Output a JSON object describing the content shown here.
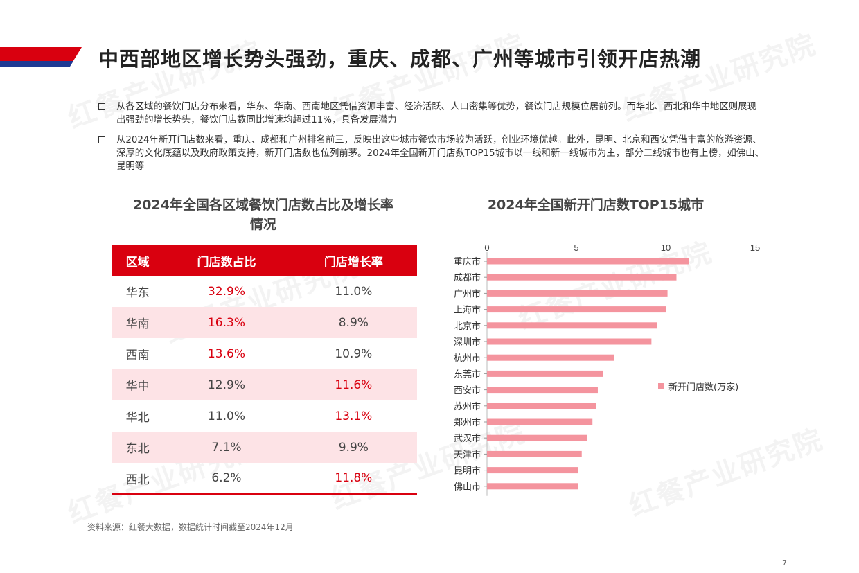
{
  "title": "中西部地区增长势头强劲，重庆、成都、广州等城市引领开店热潮",
  "bullets": [
    "从各区域的餐饮门店分布来看，华东、华南、西南地区凭借资源丰富、经济活跃、人口密集等优势，餐饮门店规模位居前列。而华北、西北和华中地区则展现出强劲的增长势头，餐饮门店数同比增速均超过11%，具备发展潜力",
    "从2024年新开门店数来看，重庆、成都和广州排名前三，反映出这些城市餐饮市场较为活跃，创业环境优越。此外，昆明、北京和西安凭借丰富的旅游资源、深厚的文化底蕴以及政府政策支持，新开门店数也位列前茅。2024年全国新开门店数TOP15城市以一线和新一线城市为主，部分二线城市也有上榜，如佛山、昆明等"
  ],
  "left_section": {
    "title_line1": "2024年全国各区域餐饮门店数占比及增长率",
    "title_line2": "情况"
  },
  "table": {
    "headers": [
      "区域",
      "门店数占比",
      "门店增长率"
    ],
    "rows": [
      {
        "region": "华东",
        "share": "32.9%",
        "growth": "11.0%"
      },
      {
        "region": "华南",
        "share": "16.3%",
        "growth": "8.9%"
      },
      {
        "region": "西南",
        "share": "13.6%",
        "growth": "10.9%"
      },
      {
        "region": "华中",
        "share": "12.9%",
        "growth": "11.6%"
      },
      {
        "region": "华北",
        "share": "11.0%",
        "growth": "13.1%"
      },
      {
        "region": "东北",
        "share": "7.1%",
        "growth": "9.9%"
      },
      {
        "region": "西北",
        "share": "6.2%",
        "growth": "11.8%"
      }
    ]
  },
  "chart_data": {
    "type": "bar",
    "orientation": "horizontal",
    "title": "2024年全国新开门店数TOP15城市",
    "categories": [
      "重庆市",
      "成都市",
      "广州市",
      "上海市",
      "北京市",
      "深圳市",
      "杭州市",
      "东莞市",
      "西安市",
      "苏州市",
      "郑州市",
      "武汉市",
      "天津市",
      "昆明市",
      "佛山市"
    ],
    "series": [
      {
        "name": "新开门店数(万家)",
        "values": [
          11.3,
          10.6,
          10.1,
          10.0,
          9.5,
          9.2,
          7.1,
          6.5,
          6.2,
          6.1,
          5.9,
          5.6,
          5.3,
          5.1,
          5.1
        ]
      }
    ],
    "xlim": [
      0,
      15
    ],
    "xticks": [
      "0",
      "5",
      "10",
      "15"
    ],
    "axis_position": "top",
    "legend_position": "right",
    "bar_color": "#f4949e",
    "grid": false
  },
  "source": "资料来源：红餐大数据，数据统计时间截至2024年12月",
  "page_number": "7",
  "watermark": "红餐产业研究院",
  "colors": {
    "accent_red": "#d9000f",
    "navy": "#1f3a93",
    "row_pink": "#fde3e6",
    "bar_pink": "#f4949e"
  }
}
